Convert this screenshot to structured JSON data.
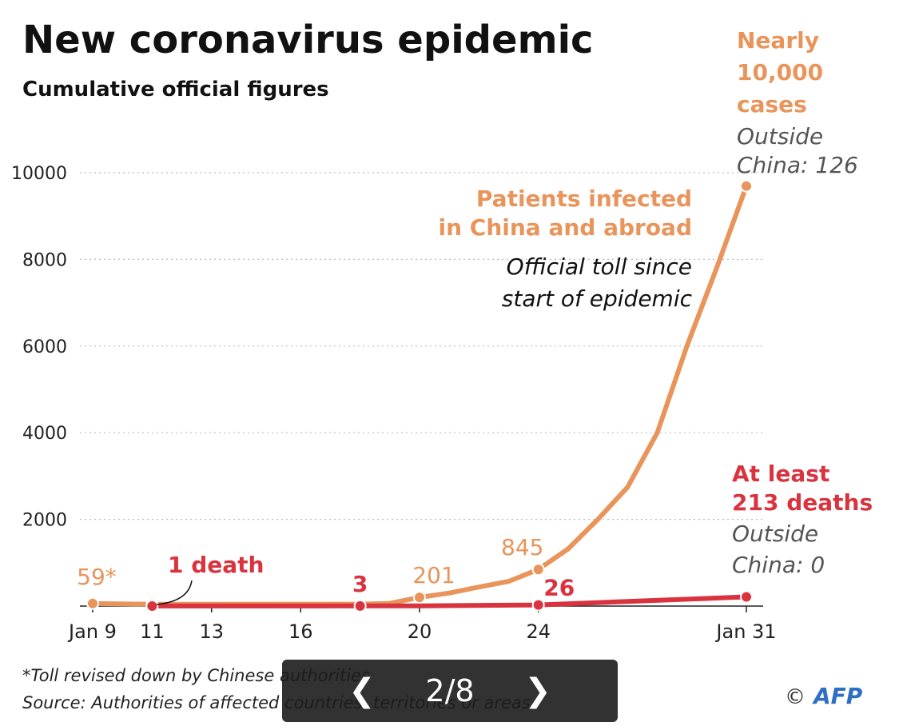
{
  "chart_data": {
    "type": "line",
    "title": "New coronavirus epidemic",
    "subtitle": "Cumulative official figures",
    "xlabel": "",
    "ylabel": "",
    "ylim": [
      0,
      10000
    ],
    "yticks": [
      {
        "label": "10000",
        "value": 10000
      },
      {
        "label": "8000",
        "value": 8000
      },
      {
        "label": "6000",
        "value": 6000
      },
      {
        "label": "4000",
        "value": 4000
      },
      {
        "label": "2000",
        "value": 2000
      }
    ],
    "grid": true,
    "x_domain": [
      9,
      31
    ],
    "xticks": [
      {
        "label": "Jan 9",
        "x": 9
      },
      {
        "label": "11",
        "x": 11
      },
      {
        "label": "13",
        "x": 13
      },
      {
        "label": "16",
        "x": 16
      },
      {
        "label": "20",
        "x": 20
      },
      {
        "label": "24",
        "x": 24
      },
      {
        "label": "Jan 31",
        "x": 31
      }
    ],
    "series": [
      {
        "name": "Patients infected in China and abroad",
        "color": "#e8945a",
        "x": [
          9,
          11,
          12,
          18,
          19,
          20,
          21,
          22,
          23,
          24,
          25,
          26,
          27,
          28,
          29,
          30,
          31
        ],
        "values": [
          59,
          41,
          41,
          45,
          62,
          201,
          300,
          440,
          571,
          845,
          1320,
          2000,
          2744,
          4000,
          6000,
          7800,
          9692
        ],
        "markers": [
          {
            "x": 9,
            "value": 59,
            "label": "59*"
          },
          {
            "x": 11,
            "value": 41,
            "label": ""
          },
          {
            "x": 20,
            "value": 201,
            "label": "201"
          },
          {
            "x": 24,
            "value": 845,
            "label": "845"
          },
          {
            "x": 31,
            "value": 9692,
            "label": ""
          }
        ]
      },
      {
        "name": "Official toll since start of epidemic",
        "color": "#d9333f",
        "x": [
          11,
          18,
          20,
          24,
          31
        ],
        "values": [
          1,
          3,
          6,
          26,
          213
        ],
        "markers": [
          {
            "x": 11,
            "value": 1,
            "label": ""
          },
          {
            "x": 18,
            "value": 3,
            "label": "3"
          },
          {
            "x": 24,
            "value": 26,
            "label": "26"
          },
          {
            "x": 31,
            "value": 213,
            "label": ""
          }
        ]
      }
    ],
    "annotations": {
      "cases_total": [
        "Nearly",
        "10,000",
        "cases"
      ],
      "cases_outside": [
        "Outside",
        "China: 126"
      ],
      "infected_label": [
        "Patients infected",
        "in China and abroad"
      ],
      "toll_label": [
        "Official toll since",
        "start of epidemic"
      ],
      "deaths_total": [
        "At least",
        "213 deaths"
      ],
      "deaths_outside": [
        "Outside",
        "China: 0"
      ],
      "first_death": "1 death"
    },
    "footnotes": [
      "*Toll revised down by Chinese authorities",
      "Source: Authorities of affected countries, territories or areas"
    ],
    "credit": {
      "copyright": "©",
      "agency": "AFP"
    }
  },
  "pager": {
    "prev_icon": "❮",
    "next_icon": "❯",
    "counter": "2/8"
  }
}
